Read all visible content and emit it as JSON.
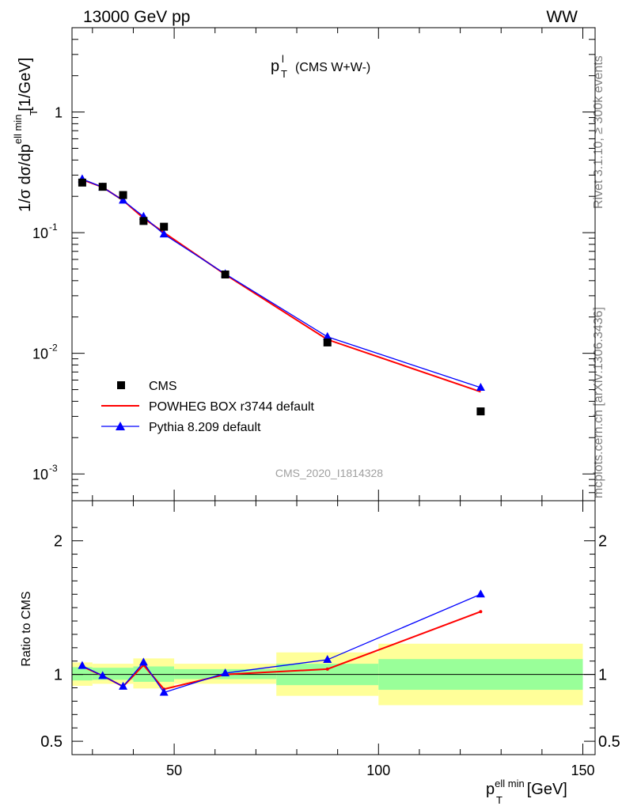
{
  "header": {
    "energy_label": "13000 GeV pp",
    "process_label": "WW"
  },
  "side_labels": {
    "rivet": "Rivet 3.1.10, ≥ 300k events",
    "source": "mcplots.cern.ch [arXiv:1306.3436]"
  },
  "colors": {
    "data": "#000000",
    "powheg": "#ff0000",
    "pythia": "#0000ff",
    "band_inner": "#99ff99",
    "band_outer": "#ffff99"
  },
  "chart_data": [
    {
      "type": "scatter",
      "title_main": "p",
      "title_sup": "l",
      "title_sub": "T",
      "title_suffix": "(CMS W+W-)",
      "watermark": "CMS_2020_I1814328",
      "ylabel": {
        "prefix": "1/σ dσ/dp",
        "sup": "ell min",
        "sub": "T",
        "unit": "[1/GeV]"
      },
      "y_scale": "log",
      "ylim": [
        0.0006,
        5.0
      ],
      "xlim": [
        25,
        153
      ],
      "y_ticks": [
        {
          "v": 0.001,
          "base": "10",
          "exp": "-3"
        },
        {
          "v": 0.01,
          "base": "10",
          "exp": "-2"
        },
        {
          "v": 0.1,
          "base": "10",
          "exp": "-1"
        },
        {
          "v": 1,
          "base": "1",
          "exp": ""
        }
      ],
      "legend_position": "lower-left",
      "series": [
        {
          "name": "CMS",
          "kind": "data",
          "x": [
            27.5,
            32.5,
            37.5,
            42.5,
            47.5,
            62.5,
            87.5,
            125
          ],
          "y": [
            0.26,
            0.24,
            0.205,
            0.125,
            0.112,
            0.045,
            0.0123,
            0.0033
          ]
        },
        {
          "name": "POWHEG BOX r3744 default",
          "kind": "line",
          "x": [
            27.5,
            32.5,
            37.5,
            42.5,
            47.5,
            62.5,
            87.5,
            125
          ],
          "y": [
            0.275,
            0.238,
            0.185,
            0.132,
            0.1,
            0.045,
            0.013,
            0.0048
          ]
        },
        {
          "name": "Pythia 8.209 default",
          "kind": "line-marker",
          "x": [
            27.5,
            32.5,
            37.5,
            42.5,
            47.5,
            62.5,
            87.5,
            125
          ],
          "y": [
            0.278,
            0.238,
            0.185,
            0.136,
            0.097,
            0.0455,
            0.0137,
            0.0052
          ]
        }
      ]
    },
    {
      "type": "line",
      "ylabel": "Ratio to CMS",
      "xlabel": {
        "prefix": "p",
        "sup": "ell min",
        "sub": "T",
        "unit": "[GeV]"
      },
      "xlim": [
        25,
        153
      ],
      "ylim": [
        0.4,
        2.3
      ],
      "x_ticks": [
        50,
        100,
        150
      ],
      "y_ticks": [
        0.5,
        1,
        2
      ],
      "reference": 1,
      "bands": [
        {
          "x0": 25,
          "x1": 30,
          "inner": [
            0.955,
            1.055
          ],
          "outer": [
            0.915,
            1.09
          ]
        },
        {
          "x0": 30,
          "x1": 40,
          "inner": [
            0.96,
            1.05
          ],
          "outer": [
            0.93,
            1.08
          ]
        },
        {
          "x0": 40,
          "x1": 50,
          "inner": [
            0.945,
            1.06
          ],
          "outer": [
            0.895,
            1.12
          ]
        },
        {
          "x0": 50,
          "x1": 75,
          "inner": [
            0.965,
            1.04
          ],
          "outer": [
            0.93,
            1.08
          ]
        },
        {
          "x0": 75,
          "x1": 100,
          "inner": [
            0.92,
            1.08
          ],
          "outer": [
            0.84,
            1.165
          ]
        },
        {
          "x0": 100,
          "x1": 150,
          "inner": [
            0.885,
            1.115
          ],
          "outer": [
            0.77,
            1.23
          ]
        }
      ],
      "series": [
        {
          "name": "POWHEG BOX r3744 default",
          "x": [
            27.5,
            32.5,
            37.5,
            42.5,
            47.5,
            62.5,
            87.5,
            125
          ],
          "y": [
            1.06,
            0.99,
            0.91,
            1.07,
            0.89,
            1.0,
            1.04,
            1.47
          ]
        },
        {
          "name": "Pythia 8.209 default",
          "x": [
            27.5,
            32.5,
            37.5,
            42.5,
            47.5,
            62.5,
            87.5,
            125
          ],
          "y": [
            1.065,
            0.99,
            0.91,
            1.09,
            0.865,
            1.01,
            1.11,
            1.6
          ]
        }
      ]
    }
  ]
}
